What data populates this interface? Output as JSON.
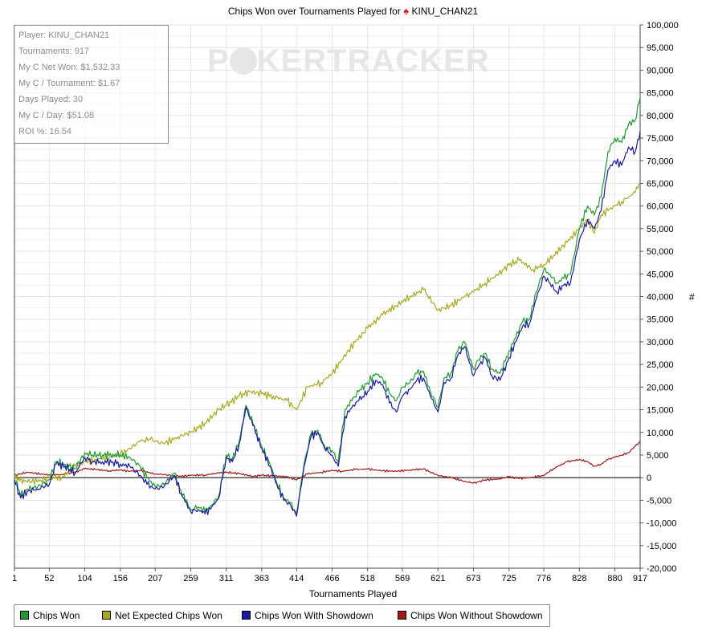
{
  "title_prefix": "Chips Won over Tournaments Played for",
  "player_name": "KINU_CHAN21",
  "stats": [
    "Player: KINU_CHAN21",
    "Tournaments: 917",
    "My C Net Won: $1,532.33",
    "My C / Tournament: $1.67",
    "Days Played: 30",
    "My C / Day: $51.08",
    "ROI %: 16.54"
  ],
  "watermark": {
    "before": "P",
    "after": "KERTRACKER"
  },
  "legend": [
    {
      "label": "Chips Won",
      "color": "#1f9a2e"
    },
    {
      "label": "Net Expected Chips Won",
      "color": "#a8a821"
    },
    {
      "label": "Chips Won With Showdown",
      "color": "#1a1aa0"
    },
    {
      "label": "Chips Won Without Showdown",
      "color": "#a01818"
    }
  ],
  "chart_data": {
    "type": "line",
    "xlabel": "Tournaments Played",
    "ylabel": "#",
    "xlim": [
      1,
      917
    ],
    "ylim": [
      -20000,
      100000
    ],
    "x_ticks": [
      1,
      52,
      104,
      156,
      207,
      259,
      311,
      363,
      414,
      466,
      518,
      569,
      621,
      673,
      725,
      776,
      828,
      880,
      917
    ],
    "y_ticks": [
      -20000,
      -15000,
      -10000,
      -5000,
      0,
      5000,
      10000,
      15000,
      20000,
      25000,
      30000,
      35000,
      40000,
      45000,
      50000,
      55000,
      60000,
      65000,
      70000,
      75000,
      80000,
      85000,
      90000,
      95000,
      100000
    ],
    "y_tick_labels": [
      "-20,000",
      "-15,000",
      "-10,000",
      "-5,000",
      "0",
      "5,000",
      "10,000",
      "15,000",
      "20,000",
      "25,000",
      "30,000",
      "35,000",
      "40,000",
      "45,000",
      "50,000",
      "55,000",
      "60,000",
      "65,000",
      "70,000",
      "75,000",
      "80,000",
      "85,000",
      "90,000",
      "95,000",
      "100,000"
    ],
    "grid": true,
    "series": [
      {
        "name": "Chips Won",
        "color": "#1f9a2e",
        "x": [
          1,
          10,
          20,
          35,
          52,
          62,
          75,
          90,
          104,
          115,
          130,
          145,
          156,
          170,
          185,
          195,
          207,
          220,
          235,
          245,
          259,
          270,
          280,
          290,
          300,
          311,
          320,
          330,
          340,
          350,
          363,
          375,
          385,
          395,
          405,
          414,
          425,
          435,
          445,
          455,
          466,
          475,
          485,
          495,
          505,
          518,
          530,
          540,
          550,
          560,
          569,
          580,
          590,
          600,
          610,
          621,
          630,
          640,
          650,
          660,
          673,
          680,
          690,
          700,
          712,
          725,
          735,
          745,
          755,
          765,
          776,
          785,
          795,
          805,
          815,
          828,
          840,
          850,
          860,
          870,
          880,
          890,
          900,
          910,
          917
        ],
        "values": [
          0,
          -4000,
          -2500,
          -2000,
          -500,
          3500,
          3000,
          2000,
          5500,
          5000,
          5000,
          5200,
          5000,
          4500,
          2500,
          0,
          -2000,
          -1500,
          1000,
          -3000,
          -7000,
          -6500,
          -7500,
          -6000,
          -4000,
          5000,
          4000,
          8000,
          16000,
          12000,
          7000,
          3000,
          -1000,
          -4500,
          -5500,
          -8000,
          3000,
          9500,
          10500,
          7000,
          6000,
          3500,
          15000,
          17000,
          19000,
          21000,
          23000,
          22000,
          18500,
          17000,
          20000,
          21000,
          23000,
          23500,
          19000,
          15500,
          22000,
          23000,
          28000,
          30000,
          24000,
          26000,
          27500,
          24000,
          23000,
          28000,
          31000,
          34500,
          35000,
          41000,
          46000,
          45000,
          43000,
          44000,
          45000,
          55000,
          60000,
          58000,
          62000,
          72000,
          75000,
          74000,
          78000,
          79000,
          84000
        ]
      },
      {
        "name": "Net Expected Chips Won",
        "color": "#a8a821",
        "x": [
          1,
          20,
          40,
          52,
          70,
          90,
          104,
          120,
          140,
          156,
          170,
          185,
          200,
          207,
          220,
          240,
          259,
          280,
          300,
          311,
          330,
          345,
          363,
          380,
          400,
          414,
          430,
          450,
          466,
          480,
          500,
          518,
          540,
          560,
          580,
          600,
          621,
          640,
          660,
          673,
          690,
          710,
          725,
          740,
          760,
          776,
          790,
          810,
          828,
          840,
          850,
          860,
          870,
          880,
          890,
          900,
          910,
          917
        ],
        "values": [
          0,
          -1000,
          -500,
          0,
          0,
          2500,
          3500,
          4000,
          4500,
          5000,
          6500,
          8000,
          8500,
          8000,
          7500,
          9000,
          10000,
          12000,
          15000,
          16000,
          18000,
          19000,
          18500,
          18000,
          17000,
          15000,
          20000,
          21000,
          23000,
          26000,
          30000,
          33000,
          36000,
          38000,
          40000,
          41500,
          37000,
          38000,
          40000,
          41000,
          43000,
          45000,
          47000,
          48000,
          46000,
          47000,
          49000,
          52000,
          55000,
          57000,
          54000,
          58000,
          59000,
          60000,
          61000,
          62000,
          63000,
          65000
        ]
      },
      {
        "name": "Chips Won With Showdown",
        "color": "#1a1aa0",
        "x": [
          1,
          10,
          20,
          35,
          52,
          62,
          75,
          90,
          104,
          115,
          130,
          145,
          156,
          170,
          185,
          195,
          207,
          220,
          235,
          245,
          259,
          270,
          280,
          290,
          300,
          311,
          320,
          330,
          340,
          350,
          363,
          375,
          385,
          395,
          405,
          414,
          425,
          435,
          445,
          455,
          466,
          475,
          485,
          495,
          505,
          518,
          530,
          540,
          550,
          560,
          569,
          580,
          590,
          600,
          610,
          621,
          630,
          640,
          650,
          660,
          673,
          680,
          690,
          700,
          712,
          725,
          735,
          745,
          755,
          765,
          776,
          785,
          795,
          805,
          815,
          828,
          840,
          850,
          860,
          870,
          880,
          890,
          900,
          910,
          917
        ],
        "values": [
          -500,
          -4500,
          -3000,
          -2500,
          -1500,
          3000,
          2500,
          1000,
          4500,
          3500,
          3500,
          3500,
          3000,
          2500,
          500,
          -1500,
          -2500,
          -2000,
          500,
          -3500,
          -7500,
          -7000,
          -8000,
          -6500,
          -4500,
          4500,
          3500,
          7500,
          15500,
          11500,
          6500,
          2500,
          -1500,
          -5000,
          -6000,
          -8500,
          2500,
          9000,
          10000,
          6500,
          5000,
          2500,
          13500,
          15500,
          17000,
          19000,
          21500,
          20500,
          16500,
          14500,
          18000,
          19500,
          21500,
          22000,
          18000,
          14500,
          21000,
          22000,
          27000,
          29000,
          22500,
          24500,
          26500,
          22500,
          21500,
          26500,
          30000,
          33500,
          34000,
          39500,
          44500,
          43000,
          41000,
          42500,
          43000,
          52500,
          57000,
          55000,
          59000,
          68000,
          70000,
          69000,
          73000,
          72000,
          76500
        ]
      },
      {
        "name": "Chips Won Without Showdown",
        "color": "#a01818",
        "x": [
          1,
          20,
          40,
          52,
          70,
          90,
          104,
          120,
          140,
          156,
          170,
          185,
          207,
          220,
          235,
          245,
          259,
          280,
          300,
          311,
          330,
          350,
          363,
          380,
          400,
          414,
          430,
          450,
          466,
          480,
          500,
          518,
          540,
          560,
          580,
          600,
          621,
          640,
          660,
          673,
          690,
          710,
          725,
          740,
          760,
          776,
          790,
          810,
          828,
          840,
          850,
          860,
          870,
          880,
          890,
          900,
          910,
          917
        ],
        "values": [
          500,
          1200,
          800,
          600,
          700,
          1200,
          2000,
          1800,
          1500,
          1700,
          1400,
          1600,
          800,
          700,
          400,
          300,
          500,
          600,
          1000,
          1200,
          900,
          300,
          500,
          400,
          200,
          -500,
          800,
          1200,
          1600,
          1400,
          1800,
          1900,
          1500,
          1400,
          1700,
          1900,
          500,
          0,
          -800,
          -1200,
          -500,
          -300,
          200,
          -200,
          100,
          500,
          2000,
          3500,
          4000,
          3500,
          2500,
          3000,
          4000,
          4500,
          5000,
          5500,
          7000,
          8000
        ]
      }
    ]
  }
}
